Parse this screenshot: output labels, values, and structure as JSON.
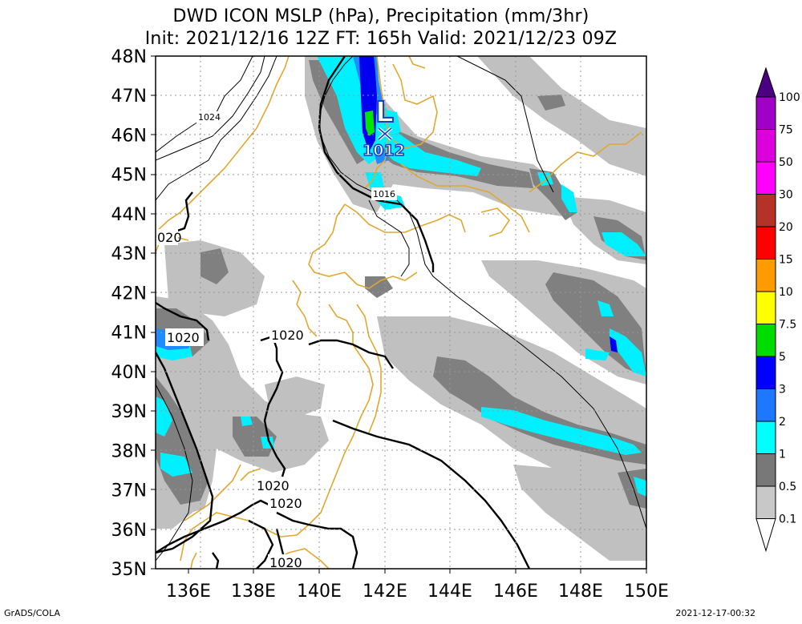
{
  "header": {
    "line1": "DWD ICON MSLP (hPa), Precipitation (mm/3hr)",
    "line2": "Init: 2021/12/16 12Z  FT: 165h  Valid: 2021/12/23 09Z"
  },
  "footer": {
    "left": "GrADS/COLA",
    "right": "2021-12-17-00:32"
  },
  "map": {
    "lat_labels": [
      "48N",
      "47N",
      "46N",
      "45N",
      "44N",
      "43N",
      "42N",
      "41N",
      "40N",
      "39N",
      "38N",
      "37N",
      "36N",
      "35N"
    ],
    "lon_labels": [
      "136E",
      "138E",
      "140E",
      "142E",
      "144E",
      "146E",
      "148E",
      "150E"
    ],
    "low_marker": "L",
    "low_pressure": "1012",
    "isobar_labels": {
      "l1024": "1024",
      "l1016": "1016",
      "l1020_nw": "020",
      "l1020_w": "1020",
      "l1020_c": "1020",
      "l1020_s1": "1020",
      "l1020_s2": "1020",
      "l1020_s3": "1020"
    }
  },
  "colorbar": {
    "labels": [
      "100",
      "75",
      "50",
      "30",
      "20",
      "15",
      "10",
      "7.5",
      "5",
      "3",
      "2",
      "1",
      "0.5",
      "0.1"
    ],
    "colors": [
      "#a000c8",
      "#dc00dc",
      "#ff00ff",
      "#b43228",
      "#ff0000",
      "#ff9b00",
      "#ffff00",
      "#00dc00",
      "#0000ff",
      "#1e78ff",
      "#00ffff",
      "#787878",
      "#c8c8c8",
      "#ffffff"
    ],
    "top_color": "#4b0082"
  },
  "precip_colors": {
    "p01": "#c0c0c0",
    "p05": "#808080",
    "p1": "#00f0ff",
    "p2": "#1e8cff",
    "p3": "#0000f0",
    "p5": "#00e600"
  }
}
